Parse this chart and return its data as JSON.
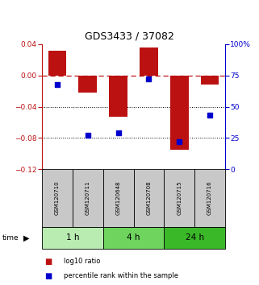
{
  "title": "GDS3433 / 37082",
  "samples": [
    "GSM120710",
    "GSM120711",
    "GSM120648",
    "GSM120708",
    "GSM120715",
    "GSM120716"
  ],
  "log10_ratio": [
    0.032,
    -0.022,
    -0.053,
    0.036,
    -0.095,
    -0.012
  ],
  "percentile_rank": [
    68,
    27,
    29,
    72,
    22,
    43
  ],
  "time_groups": [
    {
      "label": "1 h",
      "samples": [
        0,
        1
      ],
      "color": "#b8ecb0"
    },
    {
      "label": "4 h",
      "samples": [
        2,
        3
      ],
      "color": "#6ed45e"
    },
    {
      "label": "24 h",
      "samples": [
        4,
        5
      ],
      "color": "#3ab828"
    }
  ],
  "bar_color": "#bb1111",
  "dot_color": "#0000cc",
  "ylim_left": [
    -0.12,
    0.04
  ],
  "ylim_right": [
    0,
    100
  ],
  "right_ticks": [
    0,
    25,
    50,
    75,
    100
  ],
  "right_tick_labels": [
    "0",
    "25",
    "50",
    "75",
    "100%"
  ],
  "left_ticks": [
    -0.12,
    -0.08,
    -0.04,
    0,
    0.04
  ],
  "hline_y": 0,
  "dotted_lines": [
    -0.04,
    -0.08
  ],
  "bar_width": 0.6,
  "fig_width": 3.21,
  "fig_height": 3.54,
  "background_color": "#ffffff",
  "sample_box_color": "#c8c8c8",
  "legend_bar_label": "log10 ratio",
  "legend_dot_label": "percentile rank within the sample"
}
